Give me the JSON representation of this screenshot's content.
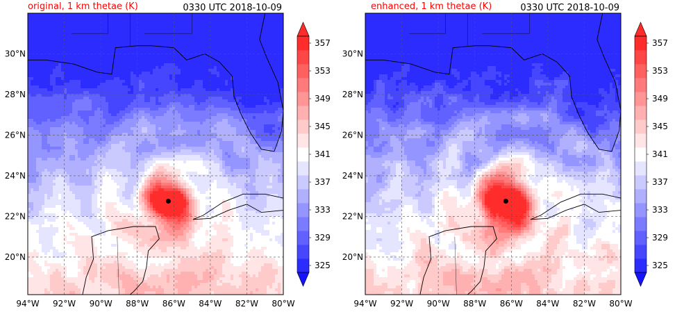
{
  "colors": {
    "title_red": "#ff0000",
    "cold": "#1a1aff",
    "warm": "#ff0000",
    "neutral": "#ffffff",
    "coast": "#000000",
    "grid": "#555555"
  },
  "panels": [
    {
      "title": "original, 1 km thetae (K)",
      "timestamp": "0330 UTC 2018-10-09"
    },
    {
      "title": "enhanced, 1 km thetae (K)",
      "timestamp": "0330 UTC 2018-10-09"
    }
  ],
  "map": {
    "lon_range": [
      -94,
      -80
    ],
    "lat_range": [
      18,
      32
    ],
    "x_tick_labels": [
      "94°W",
      "92°W",
      "90°W",
      "88°W",
      "86°W",
      "84°W",
      "82°W",
      "80°W"
    ],
    "y_tick_labels": [
      "20°N",
      "22°N",
      "24°N",
      "26°N",
      "28°N",
      "30°N"
    ],
    "storm_center": {
      "lon": -86.3,
      "lat": 22.75
    }
  },
  "colorbar": {
    "unit": "K",
    "range": [
      325,
      359
    ],
    "tick_labels": [
      "325",
      "329",
      "333",
      "337",
      "341",
      "345",
      "349",
      "353",
      "357"
    ],
    "levels": [
      325,
      327,
      329,
      331,
      333,
      335,
      337,
      339,
      341,
      343,
      345,
      347,
      349,
      351,
      353,
      355,
      357,
      359
    ],
    "extend": "both"
  }
}
